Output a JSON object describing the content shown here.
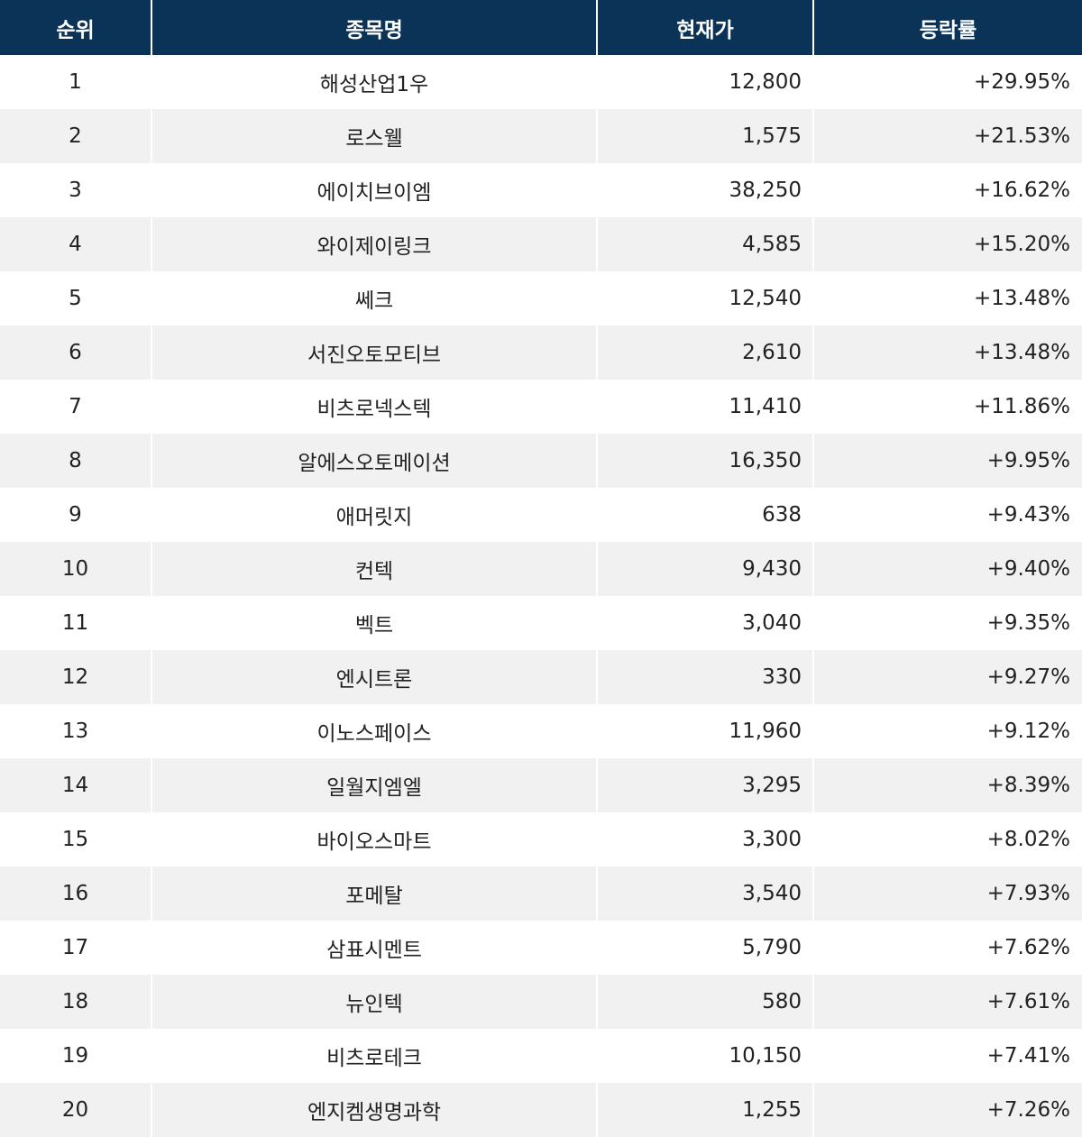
{
  "table": {
    "header": [
      "순위",
      "종목명",
      "현재가",
      "등락률"
    ],
    "rows": [
      [
        "1",
        "해성산업1우",
        "12,800",
        "+29.95%"
      ],
      [
        "2",
        "로스웰",
        "1,575",
        "+21.53%"
      ],
      [
        "3",
        "에이치브이엠",
        "38,250",
        "+16.62%"
      ],
      [
        "4",
        "와이제이링크",
        "4,585",
        "+15.20%"
      ],
      [
        "5",
        "쎄크",
        "12,540",
        "+13.48%"
      ],
      [
        "6",
        "서진오토모티브",
        "2,610",
        "+13.48%"
      ],
      [
        "7",
        "비츠로넥스텍",
        "11,410",
        "+11.86%"
      ],
      [
        "8",
        "알에스오토메이션",
        "16,350",
        "+9.95%"
      ],
      [
        "9",
        "애머릿지",
        "638",
        "+9.43%"
      ],
      [
        "10",
        "컨텍",
        "9,430",
        "+9.40%"
      ],
      [
        "11",
        "벡트",
        "3,040",
        "+9.35%"
      ],
      [
        "12",
        "엔시트론",
        "330",
        "+9.27%"
      ],
      [
        "13",
        "이노스페이스",
        "11,960",
        "+9.12%"
      ],
      [
        "14",
        "일월지엠엘",
        "3,295",
        "+8.39%"
      ],
      [
        "15",
        "바이오스마트",
        "3,300",
        "+8.02%"
      ],
      [
        "16",
        "포메탈",
        "3,540",
        "+7.93%"
      ],
      [
        "17",
        "삼표시멘트",
        "5,790",
        "+7.62%"
      ],
      [
        "18",
        "뉴인텍",
        "580",
        "+7.61%"
      ],
      [
        "19",
        "비츠로테크",
        "10,150",
        "+7.41%"
      ],
      [
        "20",
        "엔지켐생명과학",
        "1,255",
        "+7.26%"
      ]
    ]
  }
}
